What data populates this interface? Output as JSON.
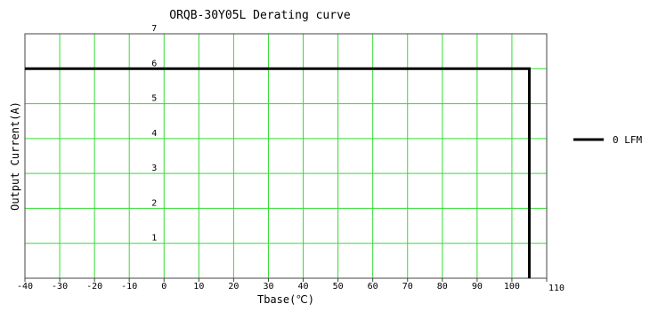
{
  "chart_data": {
    "type": "line",
    "title": "ORQB-30Y05L Derating curve",
    "xlabel": "Tbase(℃)",
    "ylabel": "Output Current(A)",
    "xlim": [
      -40,
      110
    ],
    "ylim": [
      0,
      7
    ],
    "x_ticks": [
      -40,
      -30,
      -20,
      -10,
      0,
      10,
      20,
      30,
      40,
      50,
      60,
      70,
      80,
      90,
      100,
      110
    ],
    "y_ticks": [
      1,
      2,
      3,
      4,
      5,
      6,
      7
    ],
    "grid": true,
    "legend_position": "right",
    "series": [
      {
        "name": "0 LFM",
        "color": "#000000",
        "points": [
          {
            "x": -40,
            "y": 6
          },
          {
            "x": 105,
            "y": 6
          },
          {
            "x": 105,
            "y": 0
          }
        ]
      }
    ],
    "colors": {
      "grid": "#33dd33",
      "axes": "#444444",
      "line": "#000000"
    }
  }
}
